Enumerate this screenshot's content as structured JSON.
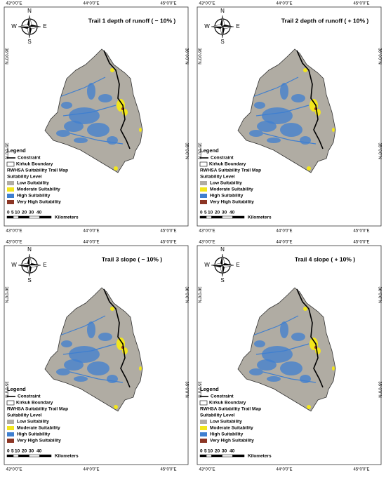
{
  "panels": [
    {
      "title": "Trail 1 depth of runoff ( − 10% )"
    },
    {
      "title": "Trail 2 depth of runoff ( + 10% )"
    },
    {
      "title": "Trail 3 slope ( − 10% )"
    },
    {
      "title": "Trail 4 slope ( + 10% )"
    }
  ],
  "north_arrow": {
    "n": "N",
    "s": "S",
    "e": "E",
    "w": "W"
  },
  "longitudes": [
    "43°0'0\"E",
    "44°0'0\"E",
    "45°0'0\"E"
  ],
  "latitudes": [
    "36°0'0\"N",
    "35°0'0\"N"
  ],
  "legend": {
    "title": "Legend",
    "constraint": "Constraint",
    "boundary": "Kirkuk Boundary",
    "map_name": "RWHSA Suitability  Trail Map",
    "level_title": "Suitability Level",
    "levels": [
      {
        "label": "Low Suitability",
        "color": "#b0aca3"
      },
      {
        "label": "Moderate Suitability",
        "color": "#f2e61c"
      },
      {
        "label": "High Suitability",
        "color": "#3f7fd0"
      },
      {
        "label": "Very High Suitability",
        "color": "#8c3524"
      }
    ]
  },
  "scale": {
    "labels": [
      "0",
      "5",
      "10",
      "20",
      "30",
      "40"
    ],
    "unit": "Kilometers"
  }
}
